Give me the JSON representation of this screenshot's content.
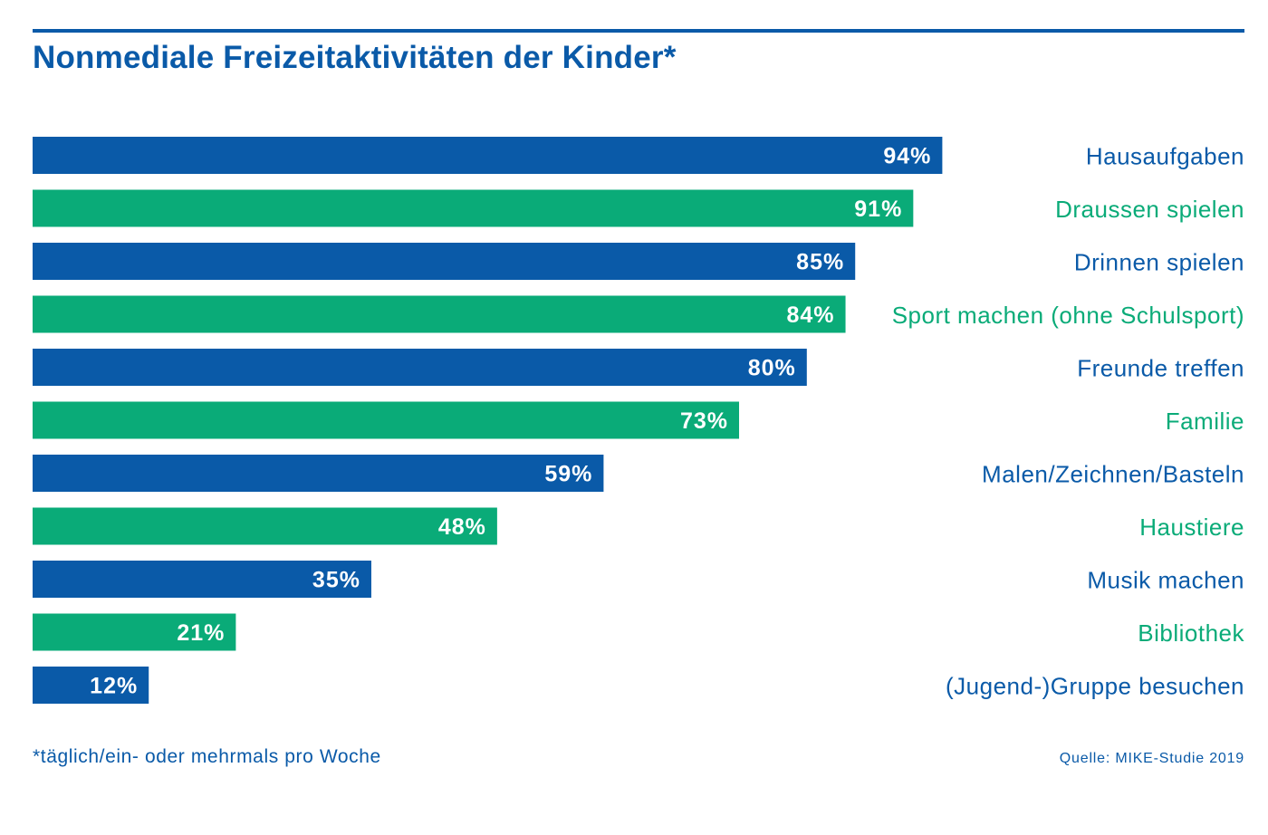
{
  "title": "Nonmediale Freizeitaktivitäten der Kinder*",
  "footnote": "*täglich/ein- oder mehrmals pro Woche",
  "source": "Quelle: MIKE-Studie 2019",
  "colors": {
    "blue": "#0a5aa8",
    "green": "#0aab78",
    "value_text": "#ffffff"
  },
  "chart_data": {
    "type": "bar",
    "orientation": "horizontal",
    "title": "Nonmediale Freizeitaktivitäten der Kinder*",
    "categories": [
      "Hausaufgaben",
      "Draussen spielen",
      "Drinnen spielen",
      "Sport machen (ohne Schulsport)",
      "Freunde treffen",
      "Familie",
      "Malen/Zeichnen/Basteln",
      "Haustiere",
      "Musik machen",
      "Bibliothek",
      "(Jugend-)Gruppe besuchen"
    ],
    "values": [
      94,
      91,
      85,
      84,
      80,
      73,
      59,
      48,
      35,
      21,
      12
    ],
    "value_labels": [
      "94%",
      "91%",
      "85%",
      "84%",
      "80%",
      "73%",
      "59%",
      "48%",
      "35%",
      "21%",
      "12%"
    ],
    "bar_colors": [
      "#0a5aa8",
      "#0aab78",
      "#0a5aa8",
      "#0aab78",
      "#0a5aa8",
      "#0aab78",
      "#0a5aa8",
      "#0aab78",
      "#0a5aa8",
      "#0aab78",
      "#0a5aa8"
    ],
    "xlim": [
      0,
      100
    ],
    "unit": "%",
    "grid": false,
    "legend": "none"
  }
}
